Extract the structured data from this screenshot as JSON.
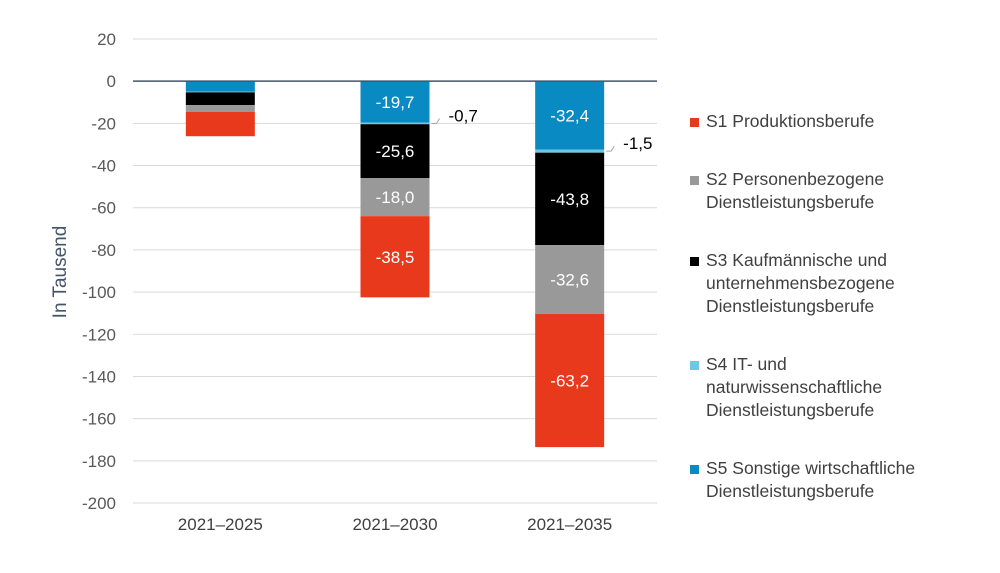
{
  "chart_data": {
    "type": "bar",
    "stacked": true,
    "ylabel": "In Tausend",
    "xlabel": "",
    "ylim": [
      -200,
      20
    ],
    "yticks": [
      20,
      0,
      -20,
      -40,
      -60,
      -80,
      -100,
      -120,
      -140,
      -160,
      -180,
      -200
    ],
    "ytick_labels": [
      "20",
      "0",
      "-20",
      "-40",
      "-60",
      "-80",
      "-100",
      "-120",
      "-140",
      "-160",
      "-180",
      "-200"
    ],
    "grid": true,
    "legend_position": "right",
    "categories": [
      "2021–2025",
      "2021–2030",
      "2021–2035"
    ],
    "series": [
      {
        "key": "S5",
        "name": "S5 Sonstige wirtschaftliche Dienstleistungsberufe",
        "lines": [
          "S5 Sonstige wirtschaftliche",
          "Dienstleistungsberufe"
        ],
        "color": "#0a8ac2",
        "label_color": "#ffffff",
        "values": [
          -5.0,
          -19.7,
          -32.4
        ],
        "labels": [
          "",
          "-19,7",
          "-32,4"
        ]
      },
      {
        "key": "S4",
        "name": "S4 IT- und naturwissenschaftliche Dienstleistungsberufe",
        "lines": [
          "S4 IT- und",
          "naturwissenschaftliche",
          "Dienstleistungsberufe"
        ],
        "color": "#6cc8e3",
        "label_color": "#000000",
        "values": [
          -0.3,
          -0.7,
          -1.5
        ],
        "labels": [
          "",
          "-0,7",
          "-1,5"
        ]
      },
      {
        "key": "S3",
        "name": "S3 Kaufmännische und unternehmensbezogene Dienstleistungsberufe",
        "lines": [
          "S3 Kaufmännische und",
          "unternehmensbezogene",
          "Dienstleistungsberufe"
        ],
        "color": "#000000",
        "label_color": "#ffffff",
        "values": [
          -6.0,
          -25.6,
          -43.8
        ],
        "labels": [
          "",
          "-25,6",
          "-43,8"
        ]
      },
      {
        "key": "S2",
        "name": "S2 Personenbezogene Dienstleistungsberufe",
        "lines": [
          "S2 Personenbezogene",
          "Dienstleistungsberufe"
        ],
        "color": "#999999",
        "label_color": "#ffffff",
        "values": [
          -3.3,
          -18.0,
          -32.6
        ],
        "labels": [
          "",
          "-18,0",
          "-32,6"
        ]
      },
      {
        "key": "S1",
        "name": "S1 Produktionsberufe",
        "lines": [
          "S1 Produktionsberufe"
        ],
        "color": "#e8391c",
        "label_color": "#ffffff",
        "values": [
          -11.5,
          -38.5,
          -63.2
        ],
        "labels": [
          "",
          "-38,5",
          "-63,2"
        ]
      }
    ],
    "legend_order": [
      "S1",
      "S2",
      "S3",
      "S4",
      "S5"
    ]
  }
}
